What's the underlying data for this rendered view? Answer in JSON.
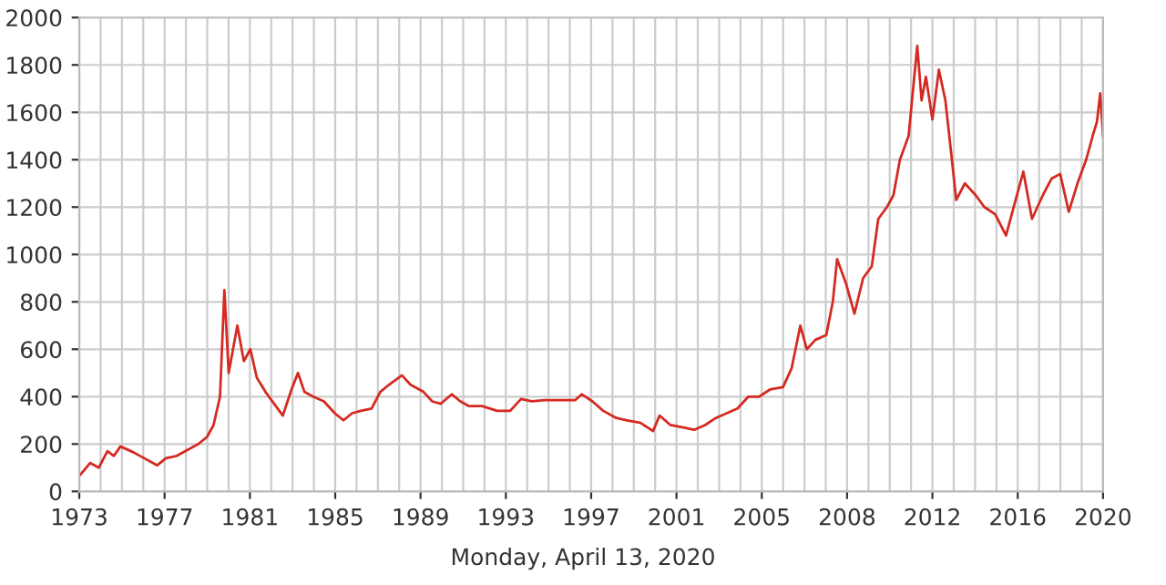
{
  "chart_data": {
    "type": "line",
    "x": [
      1973.0,
      1973.5,
      1973.9,
      1974.3,
      1974.6,
      1974.9,
      1975.5,
      1976.0,
      1976.6,
      1977.0,
      1977.5,
      1978.0,
      1978.5,
      1978.9,
      1979.2,
      1979.5,
      1979.7,
      1979.9,
      1980.3,
      1980.6,
      1980.9,
      1981.2,
      1981.6,
      1982.0,
      1982.4,
      1982.8,
      1983.1,
      1983.4,
      1983.8,
      1984.3,
      1984.8,
      1985.2,
      1985.6,
      1986.0,
      1986.5,
      1986.9,
      1987.3,
      1987.9,
      1988.3,
      1988.9,
      1989.3,
      1989.7,
      1990.2,
      1990.6,
      1991.0,
      1991.6,
      1992.3,
      1992.9,
      1993.4,
      1993.9,
      1994.5,
      1995.2,
      1995.9,
      1996.2,
      1996.7,
      1997.2,
      1997.8,
      1998.3,
      1998.9,
      1999.5,
      1999.8,
      2000.3,
      2000.9,
      2001.4,
      2001.9,
      2002.4,
      2002.9,
      2003.4,
      2003.9,
      2004.4,
      2004.9,
      2005.5,
      2005.9,
      2006.3,
      2006.6,
      2007.0,
      2007.5,
      2007.8,
      2008.0,
      2008.4,
      2008.8,
      2009.2,
      2009.6,
      2009.9,
      2010.3,
      2010.6,
      2010.9,
      2011.3,
      2011.7,
      2011.9,
      2012.1,
      2012.4,
      2012.7,
      2013.0,
      2013.3,
      2013.5,
      2013.9,
      2014.4,
      2014.8,
      2015.3,
      2015.8,
      2016.3,
      2016.6,
      2017.0,
      2017.5,
      2017.9,
      2018.3,
      2018.7,
      2019.1,
      2019.5,
      2019.8,
      2020.0,
      2020.15,
      2020.28
    ],
    "series": [
      {
        "color": "#d42a22",
        "values": [
          65,
          120,
          100,
          170,
          150,
          190,
          165,
          140,
          110,
          140,
          150,
          175,
          200,
          230,
          280,
          400,
          850,
          500,
          700,
          550,
          600,
          480,
          420,
          370,
          320,
          430,
          500,
          420,
          400,
          380,
          330,
          300,
          330,
          340,
          350,
          420,
          450,
          490,
          450,
          420,
          380,
          370,
          410,
          380,
          360,
          360,
          340,
          340,
          390,
          380,
          385,
          385,
          385,
          410,
          380,
          340,
          310,
          300,
          290,
          255,
          320,
          280,
          270,
          260,
          280,
          310,
          330,
          350,
          400,
          400,
          430,
          440,
          520,
          700,
          600,
          640,
          660,
          800,
          980,
          880,
          750,
          900,
          950,
          1150,
          1200,
          1250,
          1400,
          1500,
          1880,
          1650,
          1750,
          1570,
          1780,
          1650,
          1400,
          1230,
          1300,
          1250,
          1200,
          1170,
          1080,
          1250,
          1350,
          1150,
          1250,
          1320,
          1340,
          1180,
          1300,
          1400,
          1500,
          1560,
          1680,
          1500
        ]
      }
    ],
    "xlim": [
      1973,
      2020.28
    ],
    "xticks": [
      {
        "value": 1973,
        "label": "1973"
      },
      {
        "value": 1976.94,
        "label": "1977"
      },
      {
        "value": 1980.88,
        "label": "1981"
      },
      {
        "value": 1984.82,
        "label": "1985"
      },
      {
        "value": 1988.76,
        "label": "1989"
      },
      {
        "value": 1992.7,
        "label": "1993"
      },
      {
        "value": 1996.64,
        "label": "1997"
      },
      {
        "value": 2000.58,
        "label": "2001"
      },
      {
        "value": 2004.52,
        "label": "2005"
      },
      {
        "value": 2008.46,
        "label": "2008"
      },
      {
        "value": 2012.4,
        "label": "2012"
      },
      {
        "value": 2016.34,
        "label": "2016"
      },
      {
        "value": 2020.28,
        "label": "2020"
      }
    ],
    "ylim": [
      0,
      2000
    ],
    "yticks": [
      0,
      200,
      400,
      600,
      800,
      1000,
      1200,
      1400,
      1600,
      1800,
      2000
    ],
    "grid": true,
    "legend": false,
    "annotations": [
      "Monday, April 13, 2020"
    ]
  }
}
